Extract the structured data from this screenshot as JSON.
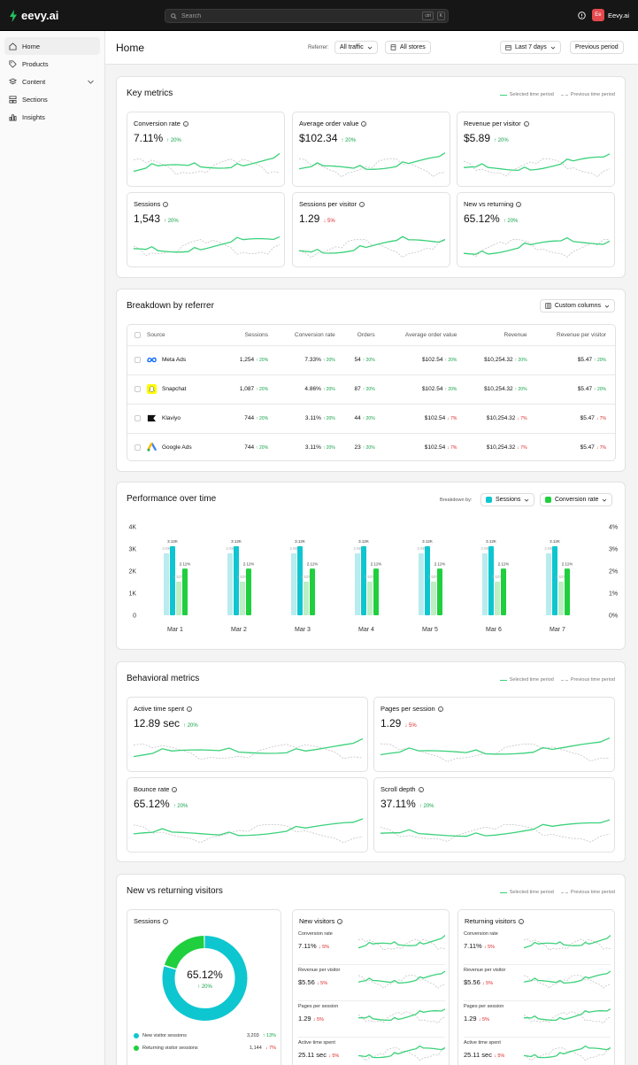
{
  "app": {
    "name": "eevy.ai"
  },
  "search": {
    "placeholder": "Search",
    "kbd1": "ctrl",
    "kbd2": "K"
  },
  "user": {
    "initials": "Ee",
    "name": "Eevy.ai"
  },
  "sidebar": {
    "items": [
      {
        "label": "Home",
        "icon": "home-icon"
      },
      {
        "label": "Products",
        "icon": "tag-icon"
      },
      {
        "label": "Content",
        "icon": "layers-icon"
      },
      {
        "label": "Sections",
        "icon": "grid-icon"
      },
      {
        "label": "Insights",
        "icon": "bar-chart-icon"
      }
    ]
  },
  "header": {
    "title": "Home",
    "referrer_label": "Referrer:",
    "referrer_value": "All traffic",
    "stores": "All stores",
    "date_range": "Last 7 days",
    "compare": "Previous period"
  },
  "legend": {
    "selected": "Selected time period",
    "previous": "Previous time period"
  },
  "key_metrics": {
    "title": "Key metrics",
    "items": [
      {
        "label": "Conversion rate",
        "value": "7.11%",
        "delta": "20%",
        "dir": "up"
      },
      {
        "label": "Average order value",
        "value": "$102.34",
        "delta": "20%",
        "dir": "up"
      },
      {
        "label": "Revenue per visitor",
        "value": "$5.89",
        "delta": "20%",
        "dir": "up"
      },
      {
        "label": "Sessions",
        "value": "1,543",
        "delta": "20%",
        "dir": "up"
      },
      {
        "label": "Sessions per visitor",
        "value": "1.29",
        "delta": "5%",
        "dir": "down"
      },
      {
        "label": "New vs returning",
        "value": "65.12%",
        "delta": "20%",
        "dir": "up"
      }
    ]
  },
  "breakdown": {
    "title": "Breakdown by referrer",
    "custom_columns": "Custom columns",
    "columns": [
      "Source",
      "Sessions",
      "Conversion rate",
      "Orders",
      "Average order value",
      "Revenue",
      "Revenue per visitor"
    ],
    "rows": [
      {
        "source": "Meta Ads",
        "logo": "meta-logo-icon",
        "sessions": "1,254",
        "sessions_d": "20%",
        "sessions_dir": "up",
        "cr": "7.33%",
        "cr_d": "20%",
        "cr_dir": "up",
        "orders": "54",
        "orders_d": "20%",
        "orders_dir": "up",
        "aov": "$102.54",
        "aov_d": "20%",
        "aov_dir": "up",
        "revenue": "$10,254.32",
        "revenue_d": "20%",
        "revenue_dir": "up",
        "rpv": "$5.47",
        "rpv_d": "20%",
        "rpv_dir": "up"
      },
      {
        "source": "Snapchat",
        "logo": "snapchat-logo-icon",
        "sessions": "1,087",
        "sessions_d": "20%",
        "sessions_dir": "up",
        "cr": "4.86%",
        "cr_d": "20%",
        "cr_dir": "up",
        "orders": "87",
        "orders_d": "20%",
        "orders_dir": "up",
        "aov": "$102.54",
        "aov_d": "20%",
        "aov_dir": "up",
        "revenue": "$10,254.32",
        "revenue_d": "20%",
        "revenue_dir": "up",
        "rpv": "$5.47",
        "rpv_d": "20%",
        "rpv_dir": "up"
      },
      {
        "source": "Klaviyo",
        "logo": "klaviyo-logo-icon",
        "sessions": "744",
        "sessions_d": "20%",
        "sessions_dir": "up",
        "cr": "3.11%",
        "cr_d": "20%",
        "cr_dir": "up",
        "orders": "44",
        "orders_d": "20%",
        "orders_dir": "up",
        "aov": "$102.54",
        "aov_d": "7%",
        "aov_dir": "down",
        "revenue": "$10,254.32",
        "revenue_d": "7%",
        "revenue_dir": "down",
        "rpv": "$5.47",
        "rpv_d": "7%",
        "rpv_dir": "down"
      },
      {
        "source": "Google Ads",
        "logo": "google-ads-logo-icon",
        "sessions": "744",
        "sessions_d": "20%",
        "sessions_dir": "up",
        "cr": "3.11%",
        "cr_d": "20%",
        "cr_dir": "up",
        "orders": "23",
        "orders_d": "20%",
        "orders_dir": "up",
        "aov": "$102.54",
        "aov_d": "7%",
        "aov_dir": "down",
        "revenue": "$10,254.32",
        "revenue_d": "7%",
        "revenue_dir": "down",
        "rpv": "$5.47",
        "rpv_d": "7%",
        "rpv_dir": "down"
      }
    ]
  },
  "performance": {
    "title": "Performance over time",
    "breakdown_label": "Breakdown by:",
    "metric1": "Sessions",
    "metric2": "Conversion rate"
  },
  "chart_data": {
    "type": "bar",
    "categories": [
      "Mar 1",
      "Mar 2",
      "Mar 3",
      "Mar 4",
      "Mar 5",
      "Mar 6",
      "Mar 7"
    ],
    "series": [
      {
        "name": "Sessions",
        "axis": "left",
        "values": [
          3120,
          3120,
          3120,
          3120,
          3120,
          3120,
          3120
        ],
        "prev_values": [
          2800,
          2800,
          2800,
          2800,
          2800,
          2800,
          2800
        ],
        "labels": [
          "3.12K",
          "2.8K"
        ],
        "color": "#0ec6d0",
        "prev_color": "#b8ecee"
      },
      {
        "name": "Conversion rate",
        "axis": "right",
        "values": [
          2.11,
          2.11,
          2.11,
          2.11,
          2.11,
          2.11,
          2.11
        ],
        "prev_values": [
          1.52,
          1.52,
          1.52,
          1.52,
          1.52,
          1.52,
          1.52
        ],
        "labels": [
          "2.11%",
          "1.52%"
        ],
        "color": "#1fcf3e",
        "prev_color": "#bdeec4"
      }
    ],
    "y_left": {
      "ticks": [
        "0",
        "1K",
        "2K",
        "3K",
        "4K"
      ],
      "lim": [
        0,
        4000
      ]
    },
    "y_right": {
      "ticks": [
        "0%",
        "1%",
        "2%",
        "3%",
        "4%"
      ],
      "lim": [
        0,
        4
      ]
    },
    "grid": false
  },
  "behavioral": {
    "title": "Behavioral metrics",
    "items": [
      {
        "label": "Active time spent",
        "value": "12.89 sec",
        "delta": "20%",
        "dir": "up"
      },
      {
        "label": "Pages per session",
        "value": "1.29",
        "delta": "5%",
        "dir": "down"
      },
      {
        "label": "Bounce rate",
        "value": "65.12%",
        "delta": "20%",
        "dir": "up"
      },
      {
        "label": "Scroll depth",
        "value": "37.11%",
        "delta": "20%",
        "dir": "up"
      }
    ]
  },
  "new_vs_returning": {
    "title": "New vs returning visitors",
    "sessions": {
      "label": "Sessions",
      "center_value": "65.12%",
      "center_delta": "20%",
      "new_share": 0.8,
      "legend": [
        {
          "label": "New visitor sessions",
          "value": "3,203",
          "delta": "13%",
          "dir": "up",
          "color": "#0ec6d0"
        },
        {
          "label": "Returning visitor sessions",
          "value": "1,144",
          "delta": "7%",
          "dir": "down",
          "color": "#1fcf3e"
        }
      ]
    },
    "new_visitors": {
      "title": "New visitors",
      "rows": [
        {
          "label": "Conversion rate",
          "value": "7.11%",
          "delta": "5%",
          "dir": "down"
        },
        {
          "label": "Revenue per visitor",
          "value": "$5.56",
          "delta": "5%",
          "dir": "down"
        },
        {
          "label": "Pages per session",
          "value": "1.29",
          "delta": "5%",
          "dir": "down"
        },
        {
          "label": "Active time spent",
          "value": "25.11 sec",
          "delta": "5%",
          "dir": "down"
        }
      ]
    },
    "returning_visitors": {
      "title": "Returning visitors",
      "rows": [
        {
          "label": "Conversion rate",
          "value": "7.11%",
          "delta": "5%",
          "dir": "down"
        },
        {
          "label": "Revenue per visitor",
          "value": "$5.56",
          "delta": "5%",
          "dir": "down"
        },
        {
          "label": "Pages per session",
          "value": "1.29",
          "delta": "5%",
          "dir": "down"
        },
        {
          "label": "Active time spent",
          "value": "25.11 sec",
          "delta": "5%",
          "dir": "down"
        }
      ]
    }
  }
}
